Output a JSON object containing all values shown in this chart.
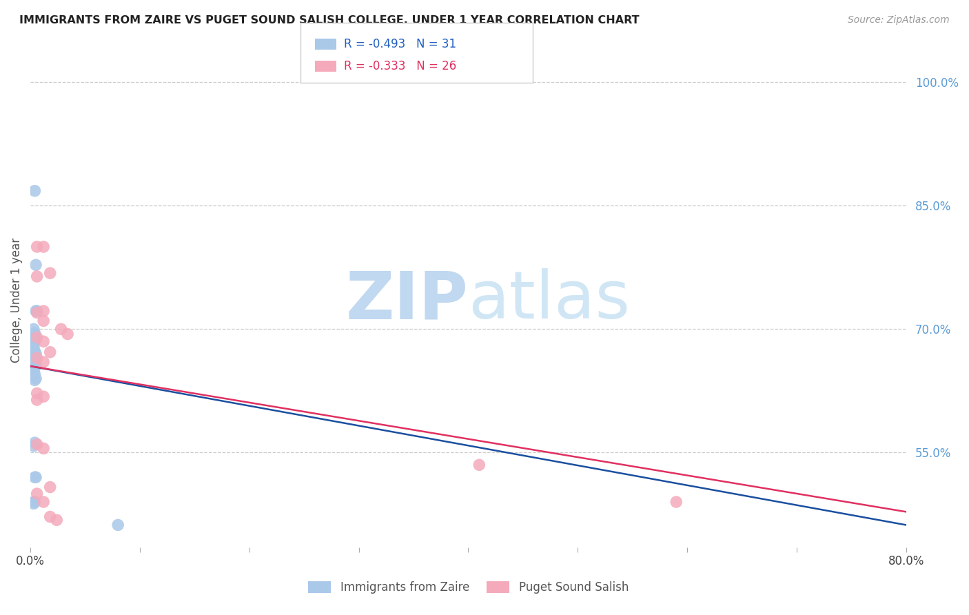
{
  "title": "IMMIGRANTS FROM ZAIRE VS PUGET SOUND SALISH COLLEGE, UNDER 1 YEAR CORRELATION CHART",
  "source": "Source: ZipAtlas.com",
  "ylabel": "College, Under 1 year",
  "right_ytick_labels": [
    "100.0%",
    "85.0%",
    "70.0%",
    "55.0%"
  ],
  "right_ytick_values": [
    1.0,
    0.85,
    0.7,
    0.55
  ],
  "xlim": [
    0.0,
    0.8
  ],
  "ylim": [
    0.435,
    1.035
  ],
  "xtick_values": [
    0.0,
    0.1,
    0.2,
    0.3,
    0.4,
    0.5,
    0.6,
    0.7,
    0.8
  ],
  "xtick_labels": [
    "0.0%",
    "",
    "",
    "",
    "",
    "",
    "",
    "",
    "80.0%"
  ],
  "legend_r_blue": "-0.493",
  "legend_n_blue": "31",
  "legend_r_pink": "-0.333",
  "legend_n_pink": "26",
  "legend_label_blue": "Immigrants from Zaire",
  "legend_label_pink": "Puget Sound Salish",
  "blue_scatter_color": "#aac8e8",
  "pink_scatter_color": "#f4aabb",
  "blue_line_color": "#1a4fa0",
  "pink_line_color": "#e03060",
  "watermark_zip_color": "#c8dff0",
  "watermark_atlas_color": "#c0d8ee",
  "background_color": "#ffffff",
  "blue_x": [
    0.004,
    0.005,
    0.005,
    0.006,
    0.003,
    0.004,
    0.004,
    0.005,
    0.004,
    0.003,
    0.003,
    0.004,
    0.005,
    0.003,
    0.004,
    0.005,
    0.004,
    0.005,
    0.003,
    0.003,
    0.004,
    0.005,
    0.004,
    0.004,
    0.003,
    0.004,
    0.005,
    0.004,
    0.003,
    0.08,
    0.003
  ],
  "blue_y": [
    0.868,
    0.778,
    0.722,
    0.722,
    0.7,
    0.695,
    0.692,
    0.688,
    0.685,
    0.682,
    0.678,
    0.673,
    0.67,
    0.668,
    0.665,
    0.66,
    0.658,
    0.655,
    0.652,
    0.648,
    0.645,
    0.64,
    0.638,
    0.562,
    0.558,
    0.52,
    0.52,
    0.49,
    0.488,
    0.462,
    0.49
  ],
  "pink_x": [
    0.006,
    0.012,
    0.018,
    0.006,
    0.012,
    0.006,
    0.012,
    0.028,
    0.034,
    0.006,
    0.012,
    0.018,
    0.006,
    0.012,
    0.006,
    0.012,
    0.006,
    0.006,
    0.012,
    0.018,
    0.006,
    0.012,
    0.41,
    0.59,
    0.018,
    0.024
  ],
  "pink_y": [
    0.8,
    0.8,
    0.768,
    0.764,
    0.722,
    0.72,
    0.71,
    0.7,
    0.694,
    0.69,
    0.685,
    0.672,
    0.665,
    0.66,
    0.622,
    0.618,
    0.614,
    0.56,
    0.555,
    0.508,
    0.5,
    0.49,
    0.535,
    0.49,
    0.472,
    0.468
  ],
  "blue_trend_x": [
    0.0,
    0.8
  ],
  "blue_trend_y": [
    0.655,
    0.462
  ],
  "pink_trend_x": [
    0.0,
    0.8
  ],
  "pink_trend_y": [
    0.655,
    0.478
  ]
}
